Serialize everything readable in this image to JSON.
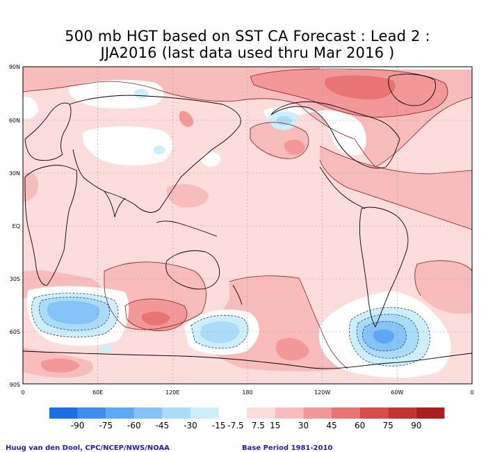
{
  "title": {
    "line1": "500 mb HGT based on SST CA Forecast : Lead 2 :",
    "line2": "JJA2016 (last data used thru Mar 2016 )"
  },
  "map": {
    "lat_labels": [
      "90N",
      "60N",
      "30N",
      "EQ",
      "30S",
      "60S",
      "90S"
    ],
    "lon_labels": [
      "0",
      "60E",
      "120E",
      "180",
      "120W",
      "60W",
      "0"
    ]
  },
  "colorbar": {
    "labels": [
      "-90",
      "-75",
      "-60",
      "-45",
      "-30",
      "-15",
      "-7.5",
      "7.5",
      "15",
      "30",
      "45",
      "60",
      "75",
      "90"
    ],
    "colors": [
      "#1e6fe6",
      "#3d8ef0",
      "#5ea8f5",
      "#86c3f8",
      "#aadcfa",
      "#cdeffc",
      "#ffffff",
      "#fddcdc",
      "#f9bcbc",
      "#f29898",
      "#e87474",
      "#d84c4c",
      "#c33333",
      "#a91f1f"
    ]
  },
  "palette": {
    "pos1": "#fddcdc",
    "pos2": "#f9bcbc",
    "pos3": "#f29898",
    "pos4": "#e87474",
    "pos5": "#d84c4c",
    "neg1": "#cdeffc",
    "neg2": "#aadcfa",
    "neg3": "#86c3f8",
    "neg4": "#5ea8f5",
    "contour": "#8b1a1a",
    "neg_contour": "#1e3a8a"
  },
  "footer": {
    "left": "Huug van den Dool, CPC/NCEP/NWS/NOAA",
    "right": "Base Period 1981-2010"
  }
}
